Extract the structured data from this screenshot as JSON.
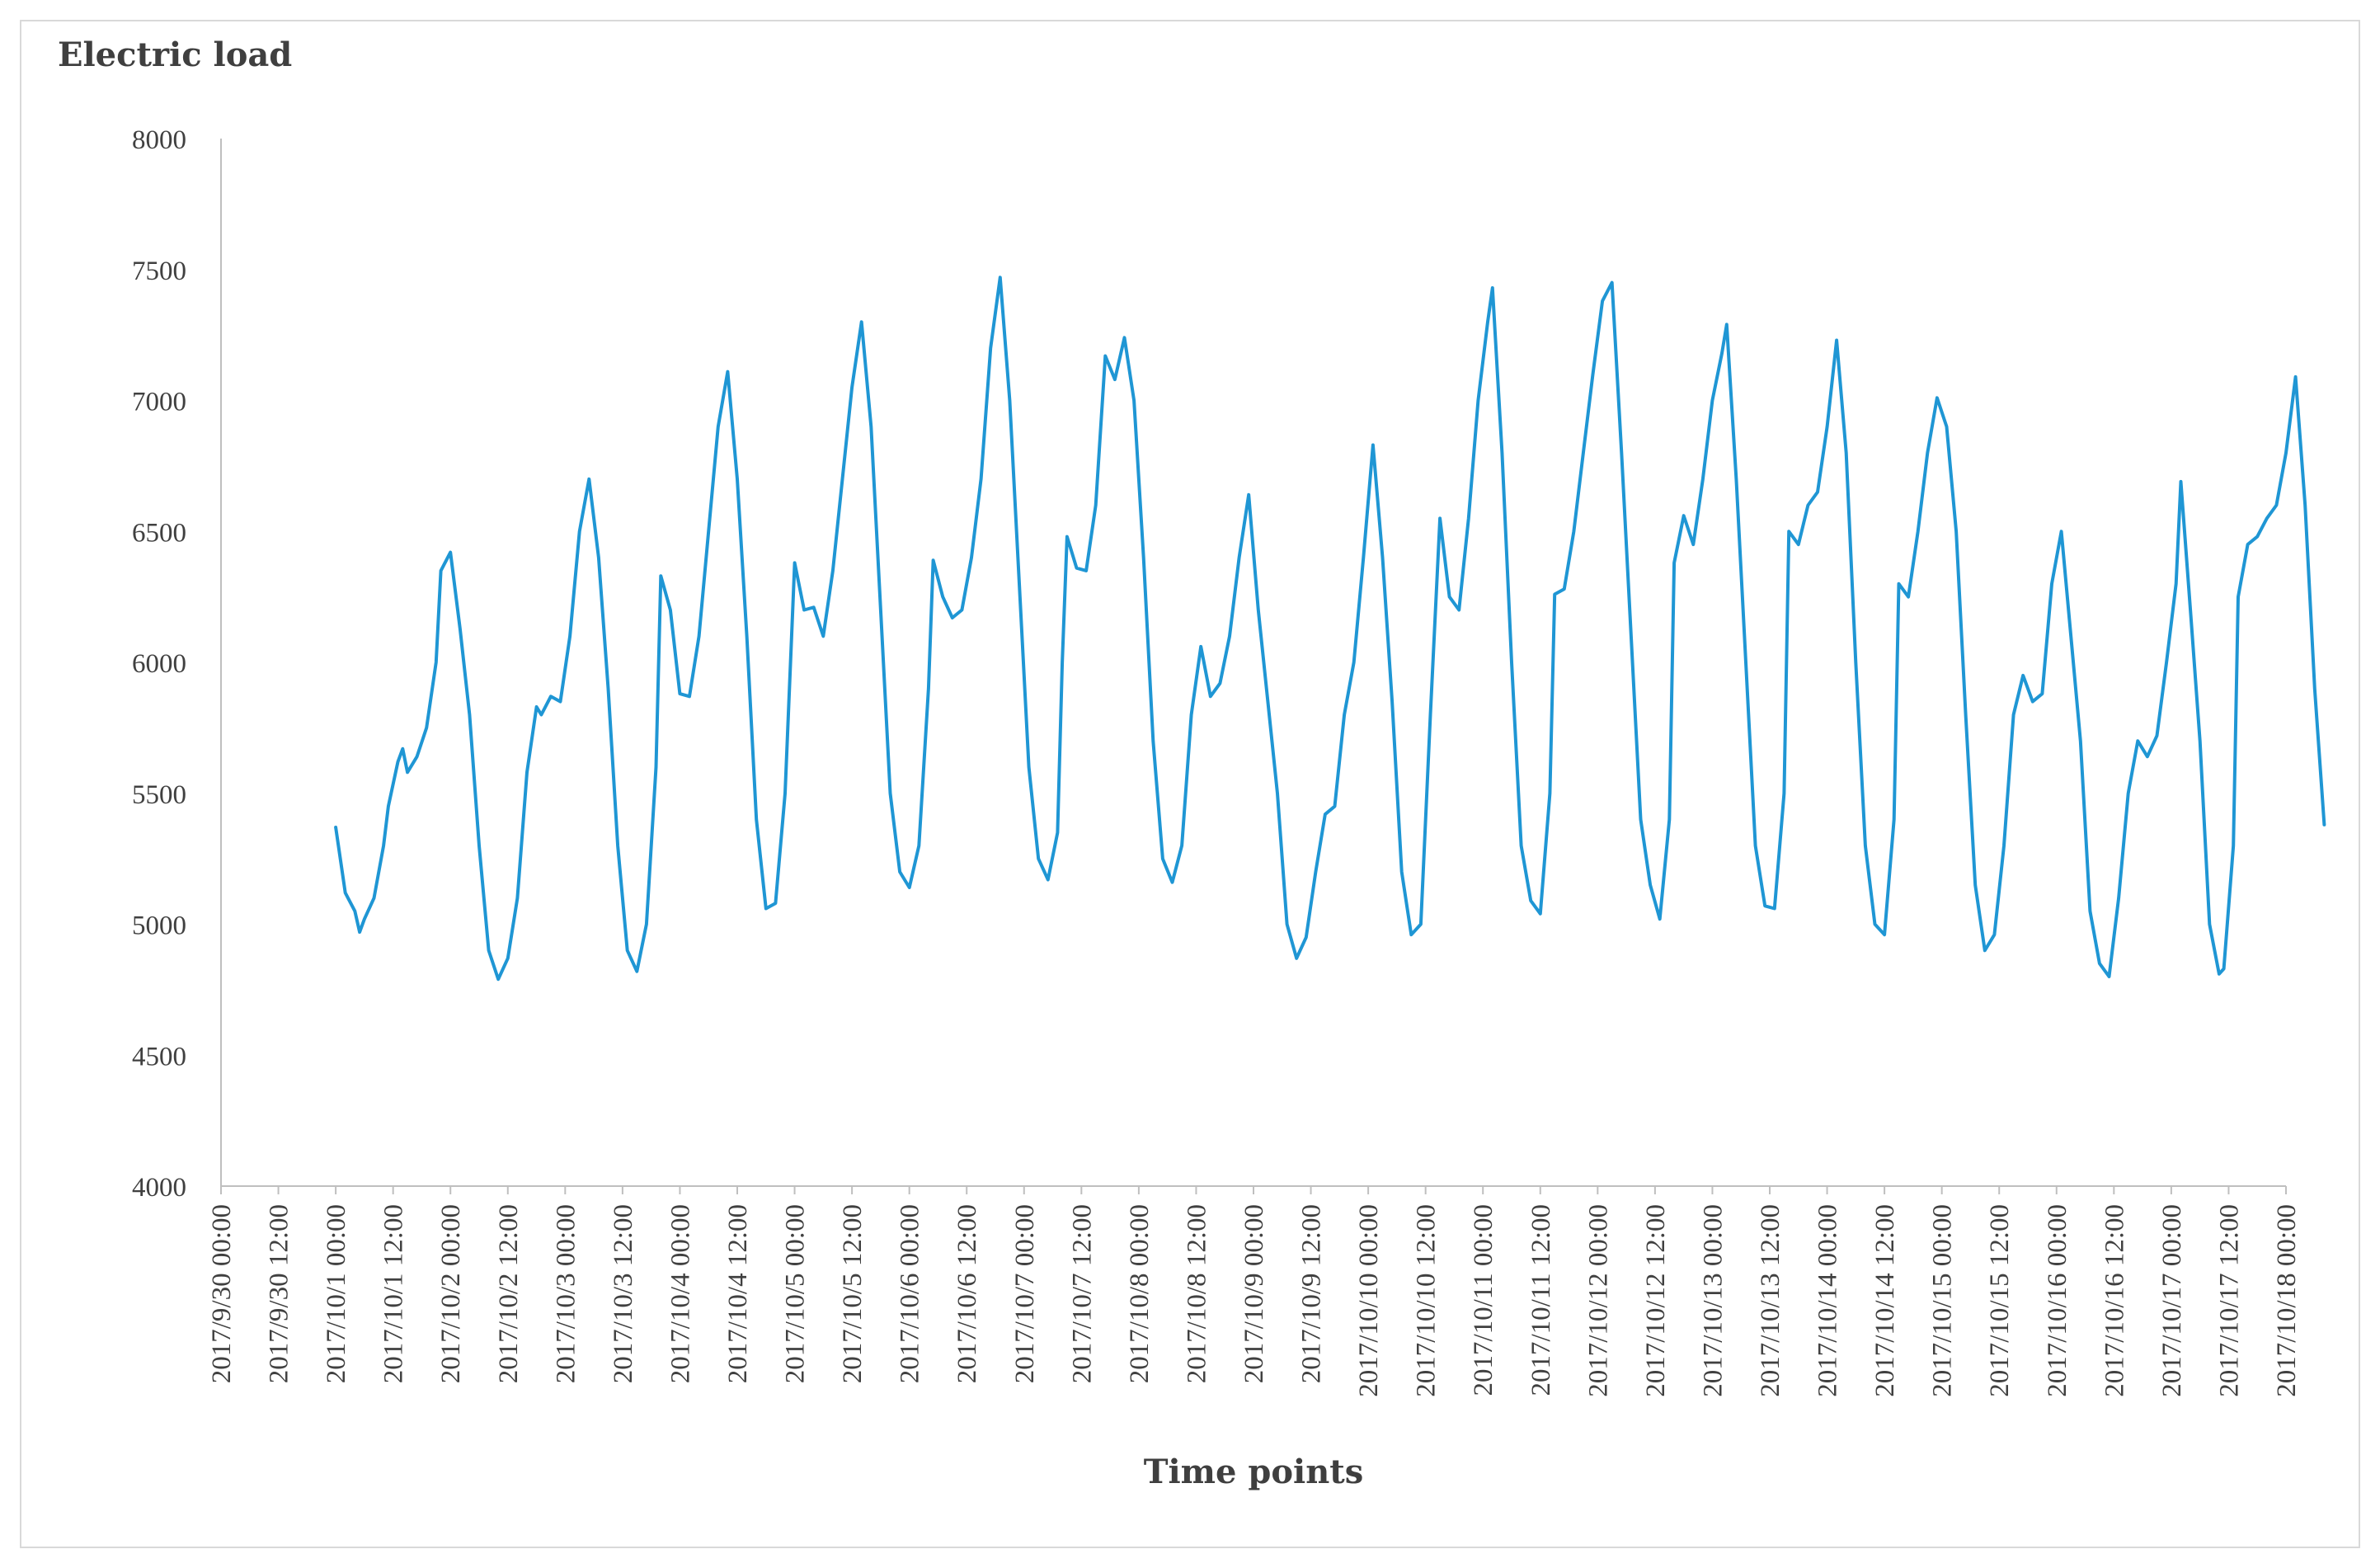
{
  "chart_data": {
    "type": "line",
    "title": "",
    "ylabel": "Electric load",
    "xlabel": "Time points",
    "ylim": [
      4000,
      8000
    ],
    "y_ticks": [
      4000,
      4500,
      5000,
      5500,
      6000,
      6500,
      7000,
      7500,
      8000
    ],
    "x_range": [
      "2017/9/30 00:00",
      "2017/10/18 00:00"
    ],
    "x_tick_labels": [
      "2017/9/30 00:00",
      "2017/9/30 12:00",
      "2017/10/1 00:00",
      "2017/10/1 12:00",
      "2017/10/2 00:00",
      "2017/10/2 12:00",
      "2017/10/3 00:00",
      "2017/10/3 12:00",
      "2017/10/4 00:00",
      "2017/10/4 12:00",
      "2017/10/5 00:00",
      "2017/10/5 12:00",
      "2017/10/6 00:00",
      "2017/10/6 12:00",
      "2017/10/7 00:00",
      "2017/10/7 12:00",
      "2017/10/8 00:00",
      "2017/10/8 12:00",
      "2017/10/9 00:00",
      "2017/10/9 12:00",
      "2017/10/10 00:00",
      "2017/10/10 12:00",
      "2017/10/11 00:00",
      "2017/10/11 12:00",
      "2017/10/12 00:00",
      "2017/10/12 12:00",
      "2017/10/13 00:00",
      "2017/10/13 12:00",
      "2017/10/14 00:00",
      "2017/10/14 12:00",
      "2017/10/15 00:00",
      "2017/10/15 12:00",
      "2017/10/16 00:00",
      "2017/10/16 12:00",
      "2017/10/17 00:00",
      "2017/10/17 12:00",
      "2017/10/18 00:00"
    ],
    "grid": false,
    "legend": "none",
    "series": [
      {
        "color": "#1f96d4",
        "points": [
          [
            "2017/10/1 00:00",
            5370
          ],
          [
            "2017/10/1 02:00",
            5120
          ],
          [
            "2017/10/1 04:00",
            5050
          ],
          [
            "2017/10/1 05:00",
            4970
          ],
          [
            "2017/10/1 06:00",
            5020
          ],
          [
            "2017/10/1 08:00",
            5100
          ],
          [
            "2017/10/1 10:00",
            5300
          ],
          [
            "2017/10/1 11:00",
            5450
          ],
          [
            "2017/10/1 13:00",
            5620
          ],
          [
            "2017/10/1 14:00",
            5670
          ],
          [
            "2017/10/1 15:00",
            5580
          ],
          [
            "2017/10/1 17:00",
            5640
          ],
          [
            "2017/10/1 19:00",
            5750
          ],
          [
            "2017/10/1 21:00",
            6000
          ],
          [
            "2017/10/1 22:00",
            6350
          ],
          [
            "2017/10/2 00:00",
            6420
          ],
          [
            "2017/10/2 02:00",
            6130
          ],
          [
            "2017/10/2 04:00",
            5800
          ],
          [
            "2017/10/2 06:00",
            5300
          ],
          [
            "2017/10/2 08:00",
            4900
          ],
          [
            "2017/10/2 10:00",
            4790
          ],
          [
            "2017/10/2 12:00",
            4870
          ],
          [
            "2017/10/2 14:00",
            5100
          ],
          [
            "2017/10/2 16:00",
            5580
          ],
          [
            "2017/10/2 18:00",
            5830
          ],
          [
            "2017/10/2 19:00",
            5800
          ],
          [
            "2017/10/2 21:00",
            5870
          ],
          [
            "2017/10/2 23:00",
            5850
          ],
          [
            "2017/10/3 01:00",
            6100
          ],
          [
            "2017/10/3 03:00",
            6500
          ],
          [
            "2017/10/3 05:00",
            6700
          ],
          [
            "2017/10/3 07:00",
            6400
          ],
          [
            "2017/10/3 09:00",
            5900
          ],
          [
            "2017/10/3 11:00",
            5300
          ],
          [
            "2017/10/3 13:00",
            4900
          ],
          [
            "2017/10/3 15:00",
            4820
          ],
          [
            "2017/10/3 17:00",
            5000
          ],
          [
            "2017/10/3 19:00",
            5600
          ],
          [
            "2017/10/3 20:00",
            6330
          ],
          [
            "2017/10/3 22:00",
            6200
          ],
          [
            "2017/10/4 00:00",
            5880
          ],
          [
            "2017/10/4 02:00",
            5870
          ],
          [
            "2017/10/4 04:00",
            6100
          ],
          [
            "2017/10/4 06:00",
            6500
          ],
          [
            "2017/10/4 08:00",
            6900
          ],
          [
            "2017/10/4 10:00",
            7110
          ],
          [
            "2017/10/4 12:00",
            6700
          ],
          [
            "2017/10/4 14:00",
            6100
          ],
          [
            "2017/10/4 16:00",
            5400
          ],
          [
            "2017/10/4 18:00",
            5060
          ],
          [
            "2017/10/4 20:00",
            5080
          ],
          [
            "2017/10/4 22:00",
            5500
          ],
          [
            "2017/10/5 00:00",
            6380
          ],
          [
            "2017/10/5 02:00",
            6200
          ],
          [
            "2017/10/5 04:00",
            6210
          ],
          [
            "2017/10/5 06:00",
            6100
          ],
          [
            "2017/10/5 08:00",
            6350
          ],
          [
            "2017/10/5 10:00",
            6700
          ],
          [
            "2017/10/5 12:00",
            7050
          ],
          [
            "2017/10/5 14:00",
            7300
          ],
          [
            "2017/10/5 16:00",
            6900
          ],
          [
            "2017/10/5 18:00",
            6200
          ],
          [
            "2017/10/5 20:00",
            5500
          ],
          [
            "2017/10/5 22:00",
            5200
          ],
          [
            "2017/10/6 00:00",
            5140
          ],
          [
            "2017/10/6 02:00",
            5300
          ],
          [
            "2017/10/6 04:00",
            5900
          ],
          [
            "2017/10/6 05:00",
            6390
          ],
          [
            "2017/10/6 07:00",
            6250
          ],
          [
            "2017/10/6 09:00",
            6170
          ],
          [
            "2017/10/6 11:00",
            6200
          ],
          [
            "2017/10/6 13:00",
            6400
          ],
          [
            "2017/10/6 15:00",
            6700
          ],
          [
            "2017/10/6 17:00",
            7200
          ],
          [
            "2017/10/6 19:00",
            7470
          ],
          [
            "2017/10/6 21:00",
            7000
          ],
          [
            "2017/10/6 23:00",
            6300
          ],
          [
            "2017/10/7 01:00",
            5600
          ],
          [
            "2017/10/7 03:00",
            5250
          ],
          [
            "2017/10/7 05:00",
            5170
          ],
          [
            "2017/10/7 07:00",
            5350
          ],
          [
            "2017/10/7 08:00",
            6000
          ],
          [
            "2017/10/7 09:00",
            6480
          ],
          [
            "2017/10/7 11:00",
            6360
          ],
          [
            "2017/10/7 13:00",
            6350
          ],
          [
            "2017/10/7 15:00",
            6600
          ],
          [
            "2017/10/7 17:00",
            7170
          ],
          [
            "2017/10/7 19:00",
            7080
          ],
          [
            "2017/10/7 21:00",
            7240
          ],
          [
            "2017/10/7 23:00",
            7000
          ],
          [
            "2017/10/8 01:00",
            6400
          ],
          [
            "2017/10/8 03:00",
            5700
          ],
          [
            "2017/10/8 05:00",
            5250
          ],
          [
            "2017/10/8 07:00",
            5160
          ],
          [
            "2017/10/8 09:00",
            5300
          ],
          [
            "2017/10/8 11:00",
            5800
          ],
          [
            "2017/10/8 13:00",
            6060
          ],
          [
            "2017/10/8 15:00",
            5870
          ],
          [
            "2017/10/8 17:00",
            5920
          ],
          [
            "2017/10/8 19:00",
            6100
          ],
          [
            "2017/10/8 21:00",
            6400
          ],
          [
            "2017/10/8 23:00",
            6640
          ],
          [
            "2017/10/9 01:00",
            6200
          ],
          [
            "2017/10/9 03:00",
            5850
          ],
          [
            "2017/10/9 05:00",
            5500
          ],
          [
            "2017/10/9 07:00",
            5000
          ],
          [
            "2017/10/9 09:00",
            4870
          ],
          [
            "2017/10/9 11:00",
            4950
          ],
          [
            "2017/10/9 13:00",
            5200
          ],
          [
            "2017/10/9 15:00",
            5420
          ],
          [
            "2017/10/9 17:00",
            5450
          ],
          [
            "2017/10/9 19:00",
            5800
          ],
          [
            "2017/10/9 21:00",
            6000
          ],
          [
            "2017/10/9 23:00",
            6400
          ],
          [
            "2017/10/10 01:00",
            6830
          ],
          [
            "2017/10/10 03:00",
            6400
          ],
          [
            "2017/10/10 05:00",
            5850
          ],
          [
            "2017/10/10 07:00",
            5200
          ],
          [
            "2017/10/10 09:00",
            4960
          ],
          [
            "2017/10/10 11:00",
            5000
          ],
          [
            "2017/10/10 13:00",
            5800
          ],
          [
            "2017/10/10 15:00",
            6550
          ],
          [
            "2017/10/10 17:00",
            6250
          ],
          [
            "2017/10/10 19:00",
            6200
          ],
          [
            "2017/10/10 21:00",
            6550
          ],
          [
            "2017/10/10 23:00",
            7000
          ],
          [
            "2017/10/11 01:00",
            7300
          ],
          [
            "2017/10/11 02:00",
            7430
          ],
          [
            "2017/10/11 04:00",
            6800
          ],
          [
            "2017/10/11 06:00",
            6000
          ],
          [
            "2017/10/11 08:00",
            5300
          ],
          [
            "2017/10/11 10:00",
            5090
          ],
          [
            "2017/10/11 12:00",
            5040
          ],
          [
            "2017/10/11 14:00",
            5500
          ],
          [
            "2017/10/11 15:00",
            6260
          ],
          [
            "2017/10/11 17:00",
            6280
          ],
          [
            "2017/10/11 19:00",
            6500
          ],
          [
            "2017/10/11 21:00",
            6800
          ],
          [
            "2017/10/11 23:00",
            7100
          ],
          [
            "2017/10/12 01:00",
            7380
          ],
          [
            "2017/10/12 03:00",
            7450
          ],
          [
            "2017/10/12 05:00",
            6800
          ],
          [
            "2017/10/12 07:00",
            6100
          ],
          [
            "2017/10/12 09:00",
            5400
          ],
          [
            "2017/10/12 11:00",
            5150
          ],
          [
            "2017/10/12 13:00",
            5020
          ],
          [
            "2017/10/12 15:00",
            5400
          ],
          [
            "2017/10/12 16:00",
            6380
          ],
          [
            "2017/10/12 18:00",
            6560
          ],
          [
            "2017/10/12 20:00",
            6450
          ],
          [
            "2017/10/12 22:00",
            6700
          ],
          [
            "2017/10/13 00:00",
            7000
          ],
          [
            "2017/10/13 02:00",
            7180
          ],
          [
            "2017/10/13 03:00",
            7290
          ],
          [
            "2017/10/13 05:00",
            6700
          ],
          [
            "2017/10/13 07:00",
            6000
          ],
          [
            "2017/10/13 09:00",
            5300
          ],
          [
            "2017/10/13 11:00",
            5070
          ],
          [
            "2017/10/13 13:00",
            5060
          ],
          [
            "2017/10/13 15:00",
            5500
          ],
          [
            "2017/10/13 16:00",
            6500
          ],
          [
            "2017/10/13 18:00",
            6450
          ],
          [
            "2017/10/13 20:00",
            6600
          ],
          [
            "2017/10/13 22:00",
            6650
          ],
          [
            "2017/10/14 00:00",
            6900
          ],
          [
            "2017/10/14 02:00",
            7230
          ],
          [
            "2017/10/14 04:00",
            6800
          ],
          [
            "2017/10/14 06:00",
            6000
          ],
          [
            "2017/10/14 08:00",
            5300
          ],
          [
            "2017/10/14 10:00",
            5000
          ],
          [
            "2017/10/14 12:00",
            4960
          ],
          [
            "2017/10/14 14:00",
            5400
          ],
          [
            "2017/10/14 15:00",
            6300
          ],
          [
            "2017/10/14 17:00",
            6250
          ],
          [
            "2017/10/14 19:00",
            6500
          ],
          [
            "2017/10/14 21:00",
            6800
          ],
          [
            "2017/10/14 23:00",
            7010
          ],
          [
            "2017/10/15 01:00",
            6900
          ],
          [
            "2017/10/15 03:00",
            6500
          ],
          [
            "2017/10/15 05:00",
            5800
          ],
          [
            "2017/10/15 07:00",
            5150
          ],
          [
            "2017/10/15 09:00",
            4900
          ],
          [
            "2017/10/15 11:00",
            4960
          ],
          [
            "2017/10/15 13:00",
            5300
          ],
          [
            "2017/10/15 15:00",
            5800
          ],
          [
            "2017/10/15 17:00",
            5950
          ],
          [
            "2017/10/15 19:00",
            5850
          ],
          [
            "2017/10/15 21:00",
            5880
          ],
          [
            "2017/10/15 23:00",
            6300
          ],
          [
            "2017/10/16 01:00",
            6500
          ],
          [
            "2017/10/16 03:00",
            6100
          ],
          [
            "2017/10/16 05:00",
            5700
          ],
          [
            "2017/10/16 07:00",
            5050
          ],
          [
            "2017/10/16 09:00",
            4850
          ],
          [
            "2017/10/16 11:00",
            4800
          ],
          [
            "2017/10/16 13:00",
            5100
          ],
          [
            "2017/10/16 15:00",
            5500
          ],
          [
            "2017/10/16 17:00",
            5700
          ],
          [
            "2017/10/16 19:00",
            5640
          ],
          [
            "2017/10/16 21:00",
            5720
          ],
          [
            "2017/10/16 23:00",
            6000
          ],
          [
            "2017/10/17 01:00",
            6300
          ],
          [
            "2017/10/17 02:00",
            6690
          ],
          [
            "2017/10/17 04:00",
            6200
          ],
          [
            "2017/10/17 06:00",
            5700
          ],
          [
            "2017/10/17 08:00",
            5000
          ],
          [
            "2017/10/17 10:00",
            4810
          ],
          [
            "2017/10/17 11:00",
            4830
          ],
          [
            "2017/10/17 13:00",
            5300
          ],
          [
            "2017/10/17 14:00",
            6250
          ],
          [
            "2017/10/17 16:00",
            6450
          ],
          [
            "2017/10/17 18:00",
            6480
          ],
          [
            "2017/10/17 20:00",
            6550
          ],
          [
            "2017/10/17 22:00",
            6600
          ],
          [
            "2017/10/18 00:00",
            6800
          ],
          [
            "2017/10/18 02:00",
            7090
          ],
          [
            "2017/10/18 04:00",
            6600
          ],
          [
            "2017/10/18 06:00",
            5900
          ],
          [
            "2017/10/18 08:00",
            5380
          ]
        ]
      }
    ]
  }
}
